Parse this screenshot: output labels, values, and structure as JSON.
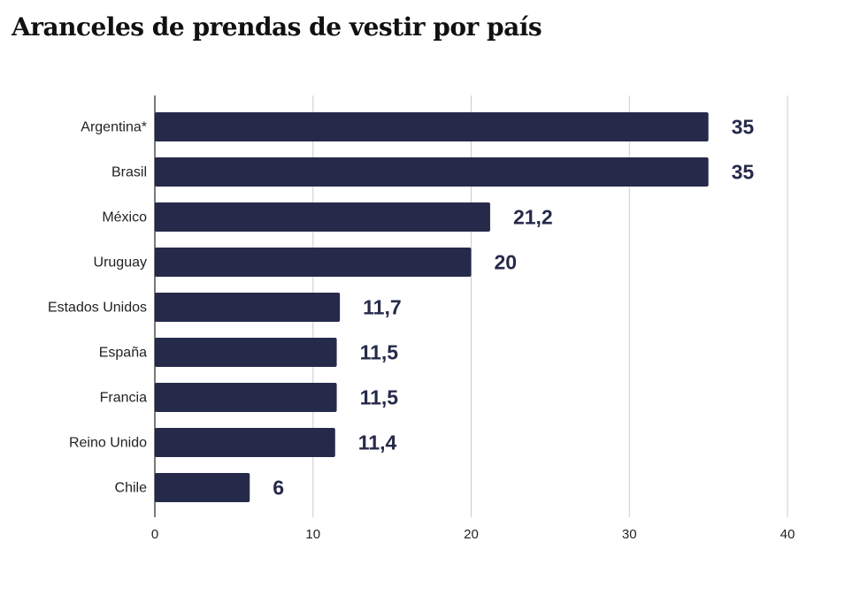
{
  "chart_data": {
    "type": "bar",
    "orientation": "horizontal",
    "title": "Aranceles de prendas de vestir por país",
    "categories": [
      "Argentina*",
      "Brasil",
      "México",
      "Uruguay",
      "Estados Unidos",
      "España",
      "Francia",
      "Reino Unido",
      "Chile"
    ],
    "values": [
      35,
      35,
      21.2,
      20,
      11.7,
      11.5,
      11.5,
      11.4,
      6
    ],
    "value_labels": [
      "35",
      "35",
      "21,2",
      "20",
      "11,7",
      "11,5",
      "11,5",
      "11,4",
      "6"
    ],
    "xlim": [
      0,
      40
    ],
    "xticks": [
      0,
      10,
      20,
      30,
      40
    ],
    "xlabel": "",
    "ylabel": "",
    "grid": true,
    "bar_color": "#262a4a"
  }
}
